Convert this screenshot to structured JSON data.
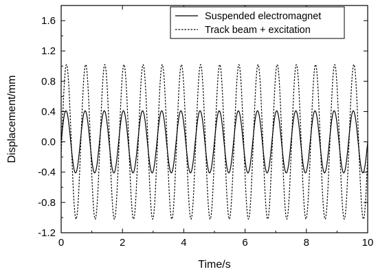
{
  "chart_data": {
    "type": "line",
    "title": "",
    "xlabel": "Time/s",
    "ylabel": "Displacement/mm",
    "xlim": [
      0,
      10
    ],
    "ylim": [
      -1.2,
      1.8
    ],
    "x_ticks": [
      0,
      2,
      4,
      6,
      8,
      10
    ],
    "x_tick_labels": [
      "0",
      "2",
      "4",
      "6",
      "8",
      "10"
    ],
    "y_ticks": [
      -1.2,
      -0.8,
      -0.4,
      0.0,
      0.4,
      0.8,
      1.2,
      1.6
    ],
    "y_tick_labels": [
      "-1.2",
      "-0.8",
      "-0.4",
      "0.0",
      "0.4",
      "0.8",
      "1.2",
      "1.6"
    ],
    "grid": false,
    "legend_position": "top-right",
    "series": [
      {
        "name": "Suspended electromagnet",
        "style": "solid",
        "color": "#000000",
        "shape": "sinusoid",
        "amplitude": 0.41,
        "period": 0.625,
        "phase_deg": 0,
        "x_start": 0,
        "x_end": 10
      },
      {
        "name": "Track beam + excitation",
        "style": "dashed",
        "color": "#000000",
        "shape": "sinusoid",
        "amplitude": 1.02,
        "period": 0.625,
        "phase_deg": -10,
        "x_start": 0,
        "x_end": 10
      }
    ]
  }
}
